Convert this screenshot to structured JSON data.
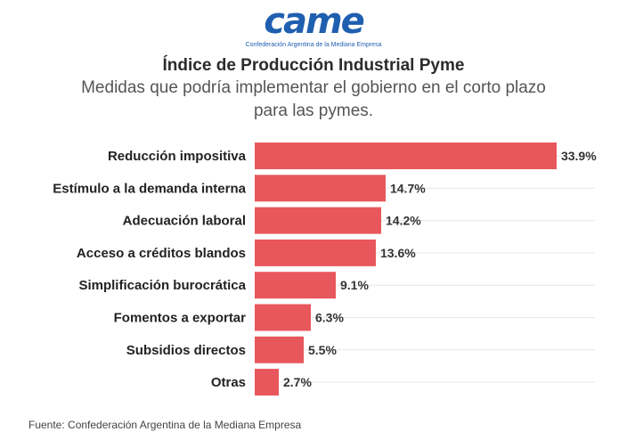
{
  "logo": {
    "word": "came",
    "subtitle": "Confederación Argentina de la Mediana Empresa"
  },
  "header": {
    "title": "Índice de Producción Industrial Pyme",
    "subtitle": "Medidas que podría implementar el gobierno en el corto plazo para las pymes."
  },
  "chart_data": {
    "type": "bar",
    "orientation": "horizontal",
    "title": "Índice de Producción Industrial Pyme",
    "subtitle": "Medidas que podría implementar el gobierno en el corto plazo para las pymes.",
    "categories": [
      "Reducción impositiva",
      "Estímulo a la demanda interna",
      "Adecuación laboral",
      "Acceso a créditos blandos",
      "Simplificación burocrática",
      "Fomentos a exportar",
      "Subsidios directos",
      "Otras"
    ],
    "values": [
      33.9,
      14.7,
      14.2,
      13.6,
      9.1,
      6.3,
      5.5,
      2.7
    ],
    "value_labels": [
      "33.9%",
      "14.7%",
      "14.2%",
      "13.6%",
      "9.1%",
      "6.3%",
      "5.5%",
      "2.7%"
    ],
    "xlim": [
      0,
      34
    ],
    "grid": true,
    "bar_color": "#e8575c",
    "grid_color": "#e6e6e6"
  },
  "footer": {
    "source": "Fuente: Confederación Argentina de la Mediana Empresa"
  }
}
